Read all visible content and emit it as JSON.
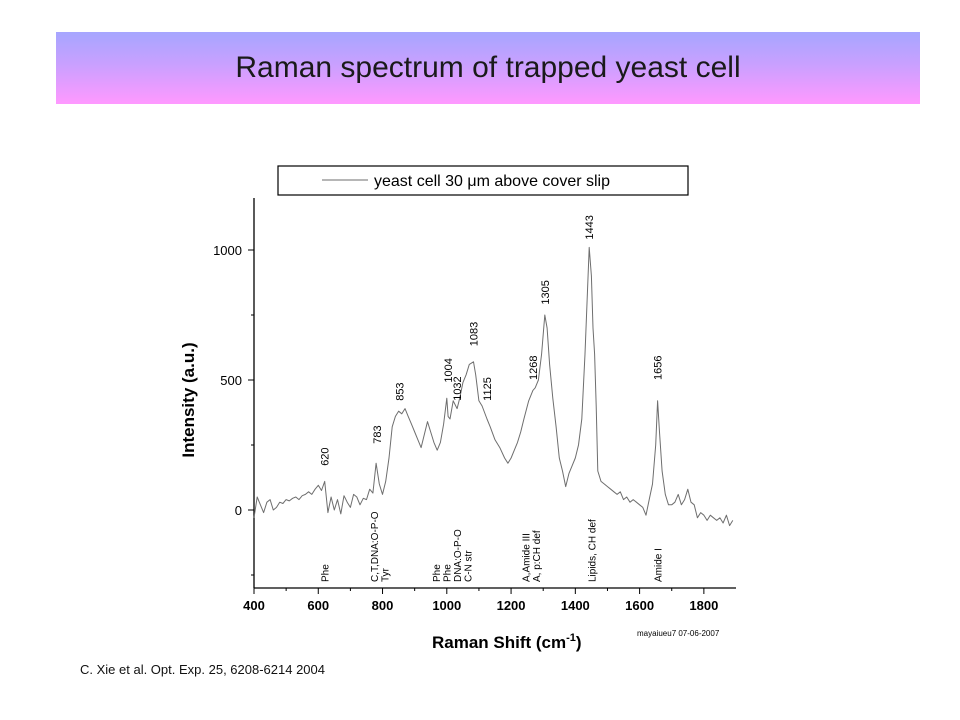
{
  "slide": {
    "title": "Raman spectrum of trapped yeast cell",
    "citation": "C. Xie et al. Opt. Exp. 25, 6208-6214 2004"
  },
  "chart_data": {
    "type": "line",
    "xlabel": "Raman Shift (cm",
    "xlabel_sup": "-1",
    "xlabel_end": ")",
    "ylabel": "Intensity (a.u.)",
    "xlim": [
      400,
      1900
    ],
    "ylim": [
      -300,
      1200
    ],
    "x_ticks": [
      400,
      600,
      800,
      1000,
      1200,
      1400,
      1600,
      1800
    ],
    "y_ticks": [
      0,
      500,
      1000
    ],
    "grid": false,
    "legend_position": "top",
    "line_color": "#6e6e6e",
    "stamp": "mayaiueu7 07-06-2007",
    "series": [
      {
        "name_prefix": "yeast cell 30 ",
        "name_mu": "μ",
        "name_suffix": "m above cover slip",
        "x": [
          400,
          410,
          420,
          430,
          440,
          450,
          460,
          470,
          480,
          490,
          500,
          510,
          520,
          530,
          540,
          550,
          560,
          570,
          580,
          590,
          600,
          610,
          620,
          630,
          640,
          650,
          660,
          670,
          680,
          690,
          700,
          710,
          720,
          730,
          740,
          750,
          760,
          770,
          780,
          790,
          800,
          810,
          820,
          830,
          840,
          850,
          860,
          870,
          880,
          890,
          900,
          910,
          920,
          930,
          940,
          950,
          960,
          970,
          980,
          990,
          1000,
          1004,
          1010,
          1020,
          1032,
          1040,
          1050,
          1060,
          1070,
          1083,
          1090,
          1100,
          1110,
          1125,
          1135,
          1150,
          1165,
          1180,
          1190,
          1200,
          1210,
          1220,
          1230,
          1240,
          1255,
          1268,
          1275,
          1285,
          1295,
          1305,
          1312,
          1320,
          1330,
          1340,
          1350,
          1360,
          1370,
          1380,
          1390,
          1400,
          1410,
          1420,
          1430,
          1443,
          1450,
          1455,
          1460,
          1465,
          1470,
          1480,
          1490,
          1500,
          1510,
          1520,
          1530,
          1540,
          1550,
          1560,
          1570,
          1580,
          1590,
          1600,
          1610,
          1620,
          1630,
          1640,
          1650,
          1656,
          1662,
          1670,
          1680,
          1690,
          1700,
          1710,
          1720,
          1730,
          1740,
          1750,
          1760,
          1770,
          1780,
          1790,
          1800,
          1810,
          1820,
          1830,
          1840,
          1850,
          1860,
          1870,
          1880,
          1890
        ],
        "y": [
          -30,
          50,
          20,
          -10,
          30,
          40,
          0,
          10,
          30,
          25,
          40,
          35,
          45,
          50,
          40,
          55,
          60,
          70,
          60,
          80,
          95,
          75,
          110,
          -10,
          50,
          0,
          40,
          -15,
          55,
          30,
          10,
          60,
          50,
          20,
          45,
          40,
          80,
          65,
          180,
          100,
          60,
          110,
          200,
          320,
          360,
          380,
          370,
          390,
          360,
          330,
          300,
          270,
          240,
          290,
          340,
          300,
          260,
          230,
          260,
          330,
          430,
          360,
          350,
          420,
          390,
          430,
          490,
          520,
          560,
          570,
          520,
          420,
          400,
          350,
          320,
          270,
          240,
          200,
          180,
          200,
          230,
          260,
          300,
          350,
          420,
          460,
          470,
          500,
          600,
          750,
          700,
          560,
          430,
          320,
          200,
          150,
          90,
          140,
          170,
          200,
          250,
          350,
          600,
          1010,
          900,
          700,
          600,
          400,
          150,
          110,
          100,
          90,
          80,
          70,
          60,
          70,
          40,
          50,
          30,
          40,
          30,
          20,
          10,
          -20,
          40,
          100,
          250,
          420,
          300,
          150,
          60,
          20,
          20,
          30,
          60,
          20,
          40,
          80,
          30,
          20,
          -30,
          -10,
          -20,
          -40,
          -20,
          -30,
          -40,
          -30,
          -50,
          -20,
          -60,
          -40
        ]
      }
    ],
    "annotations": [
      {
        "label": "620",
        "x": 620,
        "y": 170
      },
      {
        "label": "783",
        "x": 783,
        "y": 255
      },
      {
        "label": "853",
        "x": 853,
        "y": 420
      },
      {
        "label": "1004",
        "x": 1004,
        "y": 490
      },
      {
        "label": "1032",
        "x": 1032,
        "y": 420
      },
      {
        "label": "1083",
        "x": 1083,
        "y": 630
      },
      {
        "label": "1125",
        "x": 1125,
        "y": 420
      },
      {
        "label": "1268",
        "x": 1268,
        "y": 500
      },
      {
        "label": "1305",
        "x": 1305,
        "y": 790
      },
      {
        "label": "1443",
        "x": 1443,
        "y": 1040
      },
      {
        "label": "1656",
        "x": 1656,
        "y": 500
      }
    ],
    "assignments": [
      {
        "x": 620,
        "lines": [
          "Phe"
        ]
      },
      {
        "x": 790,
        "lines": [
          "C,T,DNA:O-P-O",
          "Tyr"
        ]
      },
      {
        "x": 1015,
        "lines": [
          "Phe",
          "Phe",
          "DNA:O-P-O",
          "C-N str"
        ]
      },
      {
        "x": 1262,
        "lines": [
          "A,Amide III",
          "A, p:CH def"
        ]
      },
      {
        "x": 1450,
        "lines": [
          "Lipids, CH def"
        ]
      },
      {
        "x": 1656,
        "lines": [
          "Amide I"
        ]
      }
    ]
  }
}
